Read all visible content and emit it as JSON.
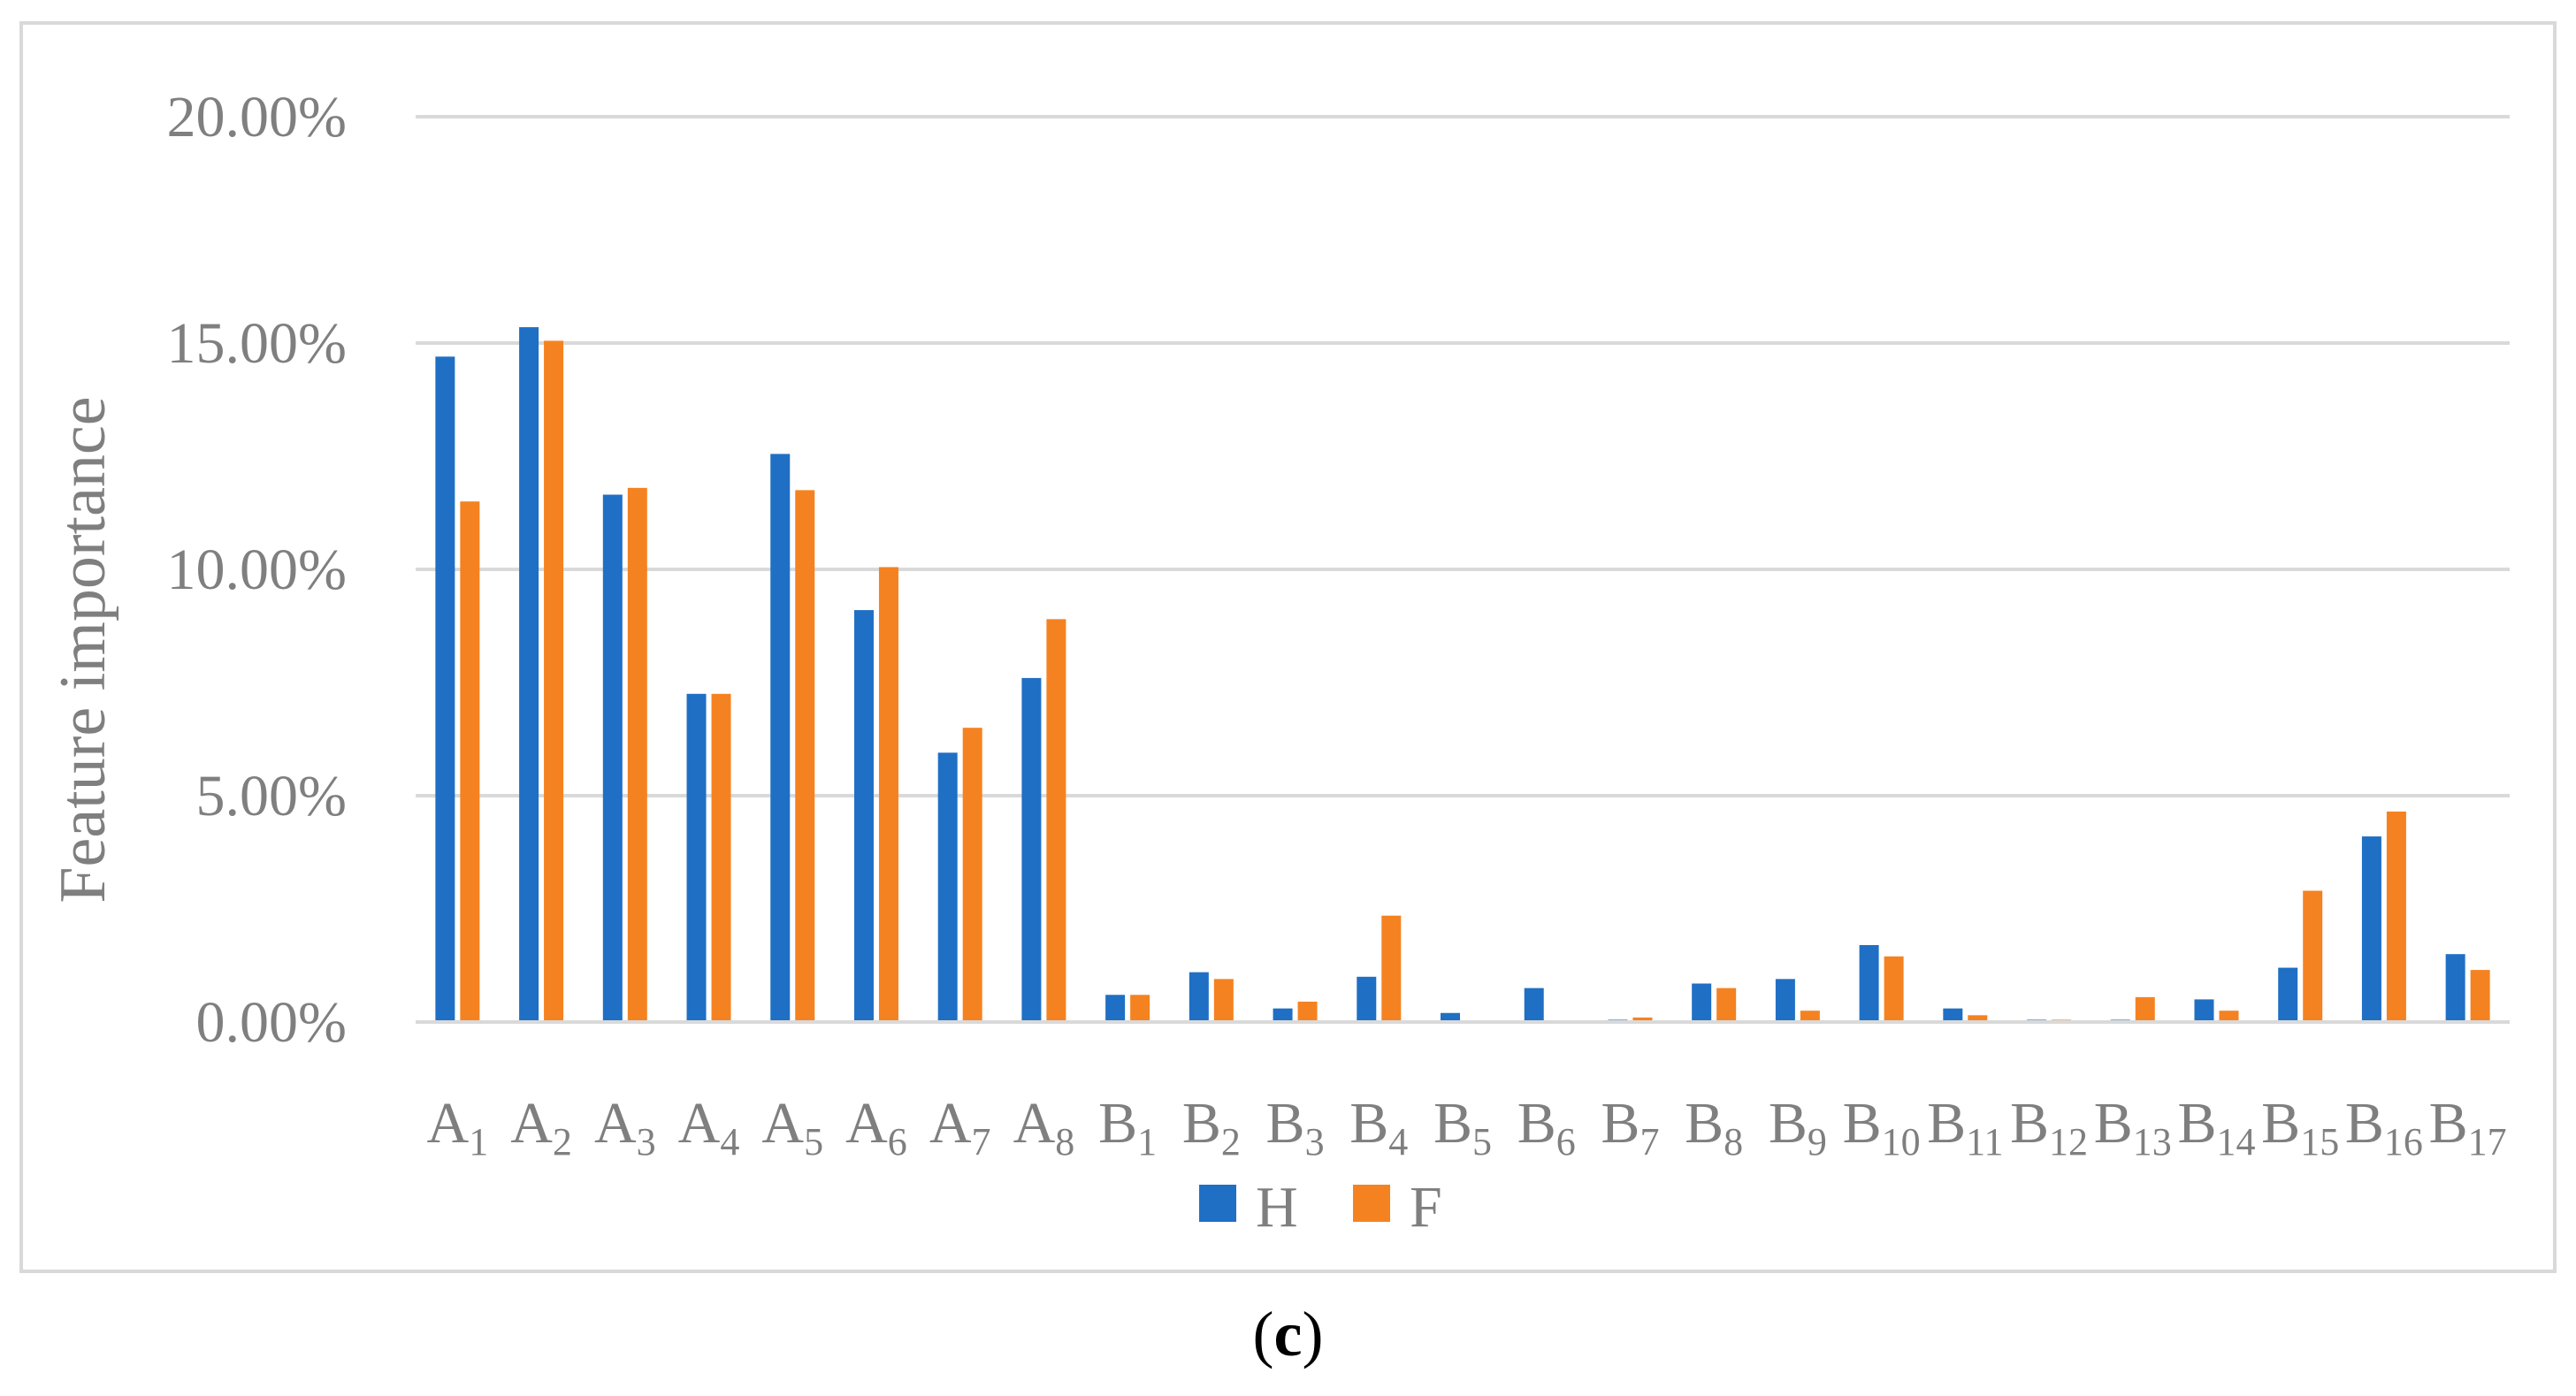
{
  "caption": {
    "open": "(",
    "letter": "c",
    "close": ")"
  },
  "colors": {
    "H": "#1f6fc5",
    "F": "#f58220",
    "grid": "#d9d9d9",
    "text": "#7f7f7f",
    "frame": "#d9d9d9"
  },
  "chart_data": {
    "type": "bar",
    "title": "",
    "xlabel": "",
    "ylabel": "Feature importance",
    "ylim": [
      0,
      20
    ],
    "y_unit": "percent",
    "y_ticks": [
      0,
      5,
      10,
      15,
      20
    ],
    "y_tick_labels": [
      "0.00%",
      "5.00%",
      "10.00%",
      "15.00%",
      "20.00%"
    ],
    "grid": true,
    "legend_position": "bottom",
    "categories": [
      {
        "base": "A",
        "sub": "1"
      },
      {
        "base": "A",
        "sub": "2"
      },
      {
        "base": "A",
        "sub": "3"
      },
      {
        "base": "A",
        "sub": "4"
      },
      {
        "base": "A",
        "sub": "5"
      },
      {
        "base": "A",
        "sub": "6"
      },
      {
        "base": "A",
        "sub": "7"
      },
      {
        "base": "A",
        "sub": "8"
      },
      {
        "base": "B",
        "sub": "1"
      },
      {
        "base": "B",
        "sub": "2"
      },
      {
        "base": "B",
        "sub": "3"
      },
      {
        "base": "B",
        "sub": "4"
      },
      {
        "base": "B",
        "sub": "5"
      },
      {
        "base": "B",
        "sub": "6"
      },
      {
        "base": "B",
        "sub": "7"
      },
      {
        "base": "B",
        "sub": "8"
      },
      {
        "base": "B",
        "sub": "9"
      },
      {
        "base": "B",
        "sub": "10"
      },
      {
        "base": "B",
        "sub": "11"
      },
      {
        "base": "B",
        "sub": "12"
      },
      {
        "base": "B",
        "sub": "13"
      },
      {
        "base": "B",
        "sub": "14"
      },
      {
        "base": "B",
        "sub": "15"
      },
      {
        "base": "B",
        "sub": "16"
      },
      {
        "base": "B",
        "sub": "17"
      }
    ],
    "series": [
      {
        "name": "H",
        "values": [
          14.7,
          15.35,
          11.65,
          7.25,
          12.55,
          9.1,
          5.95,
          7.6,
          0.6,
          1.1,
          0.3,
          1.0,
          0.2,
          0.75,
          0.05,
          0.85,
          0.95,
          1.7,
          0.3,
          0.05,
          0.05,
          0.5,
          1.2,
          4.1,
          1.5
        ]
      },
      {
        "name": "F",
        "values": [
          11.5,
          15.05,
          11.8,
          7.25,
          11.75,
          10.05,
          6.5,
          8.9,
          0.6,
          0.95,
          0.45,
          2.35,
          0.0,
          0.02,
          0.1,
          0.75,
          0.25,
          1.45,
          0.15,
          0.05,
          0.55,
          0.25,
          2.9,
          4.65,
          1.15
        ]
      }
    ]
  }
}
